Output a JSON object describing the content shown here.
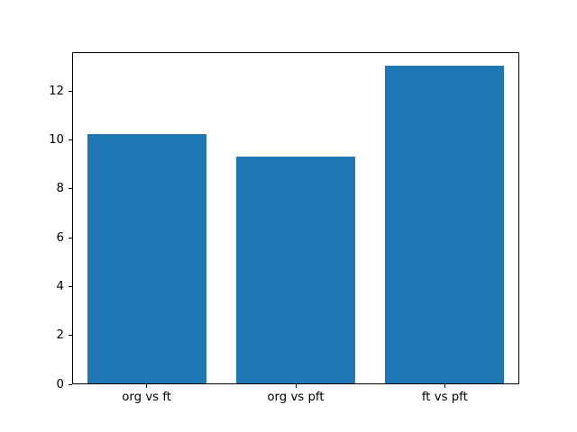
{
  "chart_data": {
    "type": "bar",
    "categories": [
      "org vs ft",
      "org vs pft",
      "ft vs pft"
    ],
    "values": [
      10.2,
      9.3,
      13.0
    ],
    "title": "",
    "xlabel": "",
    "ylabel": "",
    "yticks": [
      0,
      2,
      4,
      6,
      8,
      10,
      12
    ],
    "ylim": [
      0,
      13.6
    ],
    "bar_width_fraction": 0.8,
    "bar_color": "#1f77b4",
    "axis_color": "#000000",
    "background_color": "#ffffff",
    "grid": false,
    "legend": false
  }
}
